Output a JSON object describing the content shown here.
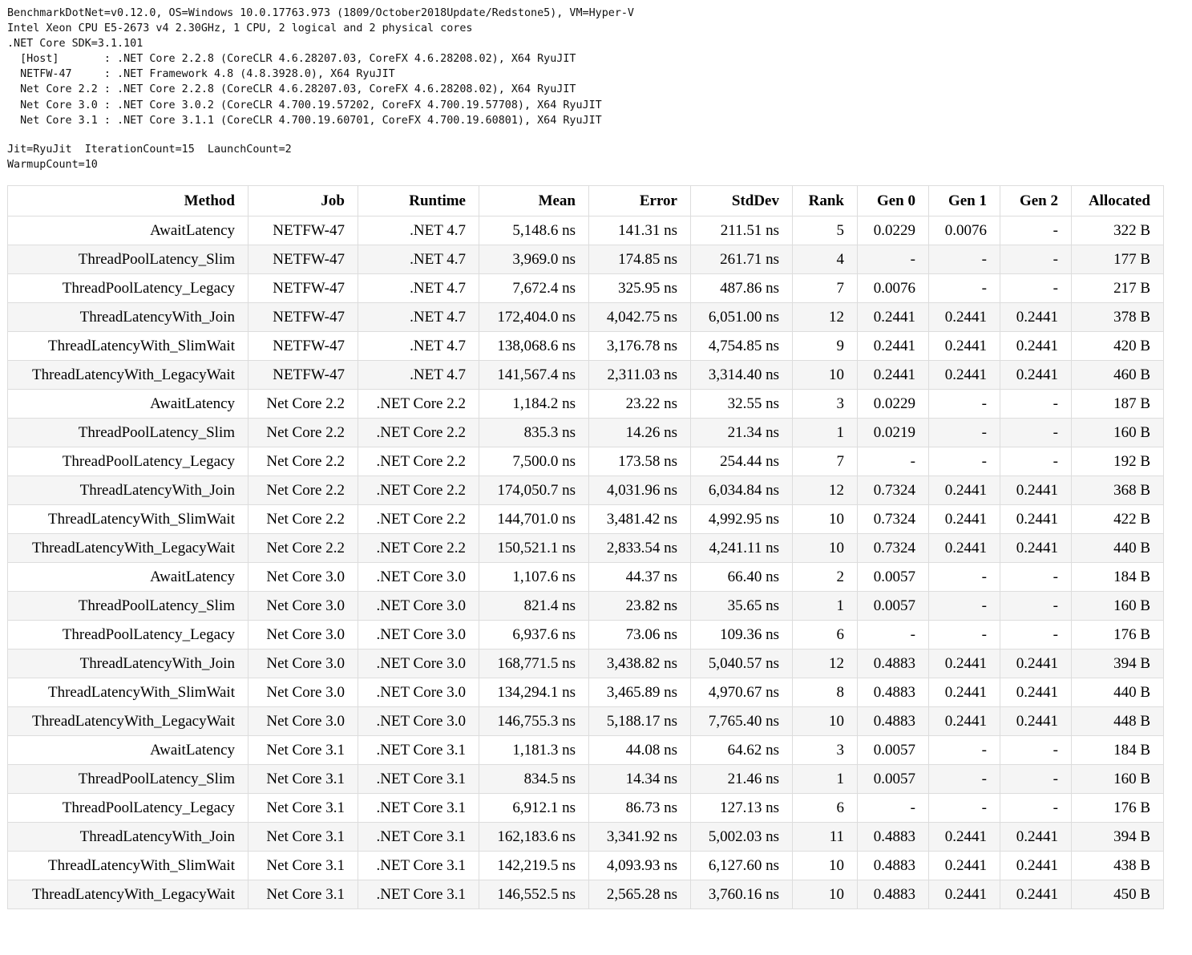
{
  "environment": {
    "lines": [
      "BenchmarkDotNet=v0.12.0, OS=Windows 10.0.17763.973 (1809/October2018Update/Redstone5), VM=Hyper-V",
      "Intel Xeon CPU E5-2673 v4 2.30GHz, 1 CPU, 2 logical and 2 physical cores",
      ".NET Core SDK=3.1.101",
      "  [Host]       : .NET Core 2.2.8 (CoreCLR 4.6.28207.03, CoreFX 4.6.28208.02), X64 RyuJIT",
      "  NETFW-47     : .NET Framework 4.8 (4.8.3928.0), X64 RyuJIT",
      "  Net Core 2.2 : .NET Core 2.2.8 (CoreCLR 4.6.28207.03, CoreFX 4.6.28208.02), X64 RyuJIT",
      "  Net Core 3.0 : .NET Core 3.0.2 (CoreCLR 4.700.19.57202, CoreFX 4.700.19.57708), X64 RyuJIT",
      "  Net Core 3.1 : .NET Core 3.1.1 (CoreCLR 4.700.19.60701, CoreFX 4.700.19.60801), X64 RyuJIT"
    ],
    "settings": [
      "Jit=RyuJit  IterationCount=15  LaunchCount=2",
      "WarmupCount=10"
    ]
  },
  "table": {
    "columns": [
      "Method",
      "Job",
      "Runtime",
      "Mean",
      "Error",
      "StdDev",
      "Rank",
      "Gen 0",
      "Gen 1",
      "Gen 2",
      "Allocated"
    ],
    "rows": [
      [
        "AwaitLatency",
        "NETFW-47",
        ".NET 4.7",
        "5,148.6 ns",
        "141.31 ns",
        "211.51 ns",
        "5",
        "0.0229",
        "0.0076",
        "-",
        "322 B"
      ],
      [
        "ThreadPoolLatency_Slim",
        "NETFW-47",
        ".NET 4.7",
        "3,969.0 ns",
        "174.85 ns",
        "261.71 ns",
        "4",
        "-",
        "-",
        "-",
        "177 B"
      ],
      [
        "ThreadPoolLatency_Legacy",
        "NETFW-47",
        ".NET 4.7",
        "7,672.4 ns",
        "325.95 ns",
        "487.86 ns",
        "7",
        "0.0076",
        "-",
        "-",
        "217 B"
      ],
      [
        "ThreadLatencyWith_Join",
        "NETFW-47",
        ".NET 4.7",
        "172,404.0 ns",
        "4,042.75 ns",
        "6,051.00 ns",
        "12",
        "0.2441",
        "0.2441",
        "0.2441",
        "378 B"
      ],
      [
        "ThreadLatencyWith_SlimWait",
        "NETFW-47",
        ".NET 4.7",
        "138,068.6 ns",
        "3,176.78 ns",
        "4,754.85 ns",
        "9",
        "0.2441",
        "0.2441",
        "0.2441",
        "420 B"
      ],
      [
        "ThreadLatencyWith_LegacyWait",
        "NETFW-47",
        ".NET 4.7",
        "141,567.4 ns",
        "2,311.03 ns",
        "3,314.40 ns",
        "10",
        "0.2441",
        "0.2441",
        "0.2441",
        "460 B"
      ],
      [
        "AwaitLatency",
        "Net Core 2.2",
        ".NET Core 2.2",
        "1,184.2 ns",
        "23.22 ns",
        "32.55 ns",
        "3",
        "0.0229",
        "-",
        "-",
        "187 B"
      ],
      [
        "ThreadPoolLatency_Slim",
        "Net Core 2.2",
        ".NET Core 2.2",
        "835.3 ns",
        "14.26 ns",
        "21.34 ns",
        "1",
        "0.0219",
        "-",
        "-",
        "160 B"
      ],
      [
        "ThreadPoolLatency_Legacy",
        "Net Core 2.2",
        ".NET Core 2.2",
        "7,500.0 ns",
        "173.58 ns",
        "254.44 ns",
        "7",
        "-",
        "-",
        "-",
        "192 B"
      ],
      [
        "ThreadLatencyWith_Join",
        "Net Core 2.2",
        ".NET Core 2.2",
        "174,050.7 ns",
        "4,031.96 ns",
        "6,034.84 ns",
        "12",
        "0.7324",
        "0.2441",
        "0.2441",
        "368 B"
      ],
      [
        "ThreadLatencyWith_SlimWait",
        "Net Core 2.2",
        ".NET Core 2.2",
        "144,701.0 ns",
        "3,481.42 ns",
        "4,992.95 ns",
        "10",
        "0.7324",
        "0.2441",
        "0.2441",
        "422 B"
      ],
      [
        "ThreadLatencyWith_LegacyWait",
        "Net Core 2.2",
        ".NET Core 2.2",
        "150,521.1 ns",
        "2,833.54 ns",
        "4,241.11 ns",
        "10",
        "0.7324",
        "0.2441",
        "0.2441",
        "440 B"
      ],
      [
        "AwaitLatency",
        "Net Core 3.0",
        ".NET Core 3.0",
        "1,107.6 ns",
        "44.37 ns",
        "66.40 ns",
        "2",
        "0.0057",
        "-",
        "-",
        "184 B"
      ],
      [
        "ThreadPoolLatency_Slim",
        "Net Core 3.0",
        ".NET Core 3.0",
        "821.4 ns",
        "23.82 ns",
        "35.65 ns",
        "1",
        "0.0057",
        "-",
        "-",
        "160 B"
      ],
      [
        "ThreadPoolLatency_Legacy",
        "Net Core 3.0",
        ".NET Core 3.0",
        "6,937.6 ns",
        "73.06 ns",
        "109.36 ns",
        "6",
        "-",
        "-",
        "-",
        "176 B"
      ],
      [
        "ThreadLatencyWith_Join",
        "Net Core 3.0",
        ".NET Core 3.0",
        "168,771.5 ns",
        "3,438.82 ns",
        "5,040.57 ns",
        "12",
        "0.4883",
        "0.2441",
        "0.2441",
        "394 B"
      ],
      [
        "ThreadLatencyWith_SlimWait",
        "Net Core 3.0",
        ".NET Core 3.0",
        "134,294.1 ns",
        "3,465.89 ns",
        "4,970.67 ns",
        "8",
        "0.4883",
        "0.2441",
        "0.2441",
        "440 B"
      ],
      [
        "ThreadLatencyWith_LegacyWait",
        "Net Core 3.0",
        ".NET Core 3.0",
        "146,755.3 ns",
        "5,188.17 ns",
        "7,765.40 ns",
        "10",
        "0.4883",
        "0.2441",
        "0.2441",
        "448 B"
      ],
      [
        "AwaitLatency",
        "Net Core 3.1",
        ".NET Core 3.1",
        "1,181.3 ns",
        "44.08 ns",
        "64.62 ns",
        "3",
        "0.0057",
        "-",
        "-",
        "184 B"
      ],
      [
        "ThreadPoolLatency_Slim",
        "Net Core 3.1",
        ".NET Core 3.1",
        "834.5 ns",
        "14.34 ns",
        "21.46 ns",
        "1",
        "0.0057",
        "-",
        "-",
        "160 B"
      ],
      [
        "ThreadPoolLatency_Legacy",
        "Net Core 3.1",
        ".NET Core 3.1",
        "6,912.1 ns",
        "86.73 ns",
        "127.13 ns",
        "6",
        "-",
        "-",
        "-",
        "176 B"
      ],
      [
        "ThreadLatencyWith_Join",
        "Net Core 3.1",
        ".NET Core 3.1",
        "162,183.6 ns",
        "3,341.92 ns",
        "5,002.03 ns",
        "11",
        "0.4883",
        "0.2441",
        "0.2441",
        "394 B"
      ],
      [
        "ThreadLatencyWith_SlimWait",
        "Net Core 3.1",
        ".NET Core 3.1",
        "142,219.5 ns",
        "4,093.93 ns",
        "6,127.60 ns",
        "10",
        "0.4883",
        "0.2441",
        "0.2441",
        "438 B"
      ],
      [
        "ThreadLatencyWith_LegacyWait",
        "Net Core 3.1",
        ".NET Core 3.1",
        "146,552.5 ns",
        "2,565.28 ns",
        "3,760.16 ns",
        "10",
        "0.4883",
        "0.2441",
        "0.2441",
        "450 B"
      ]
    ]
  }
}
